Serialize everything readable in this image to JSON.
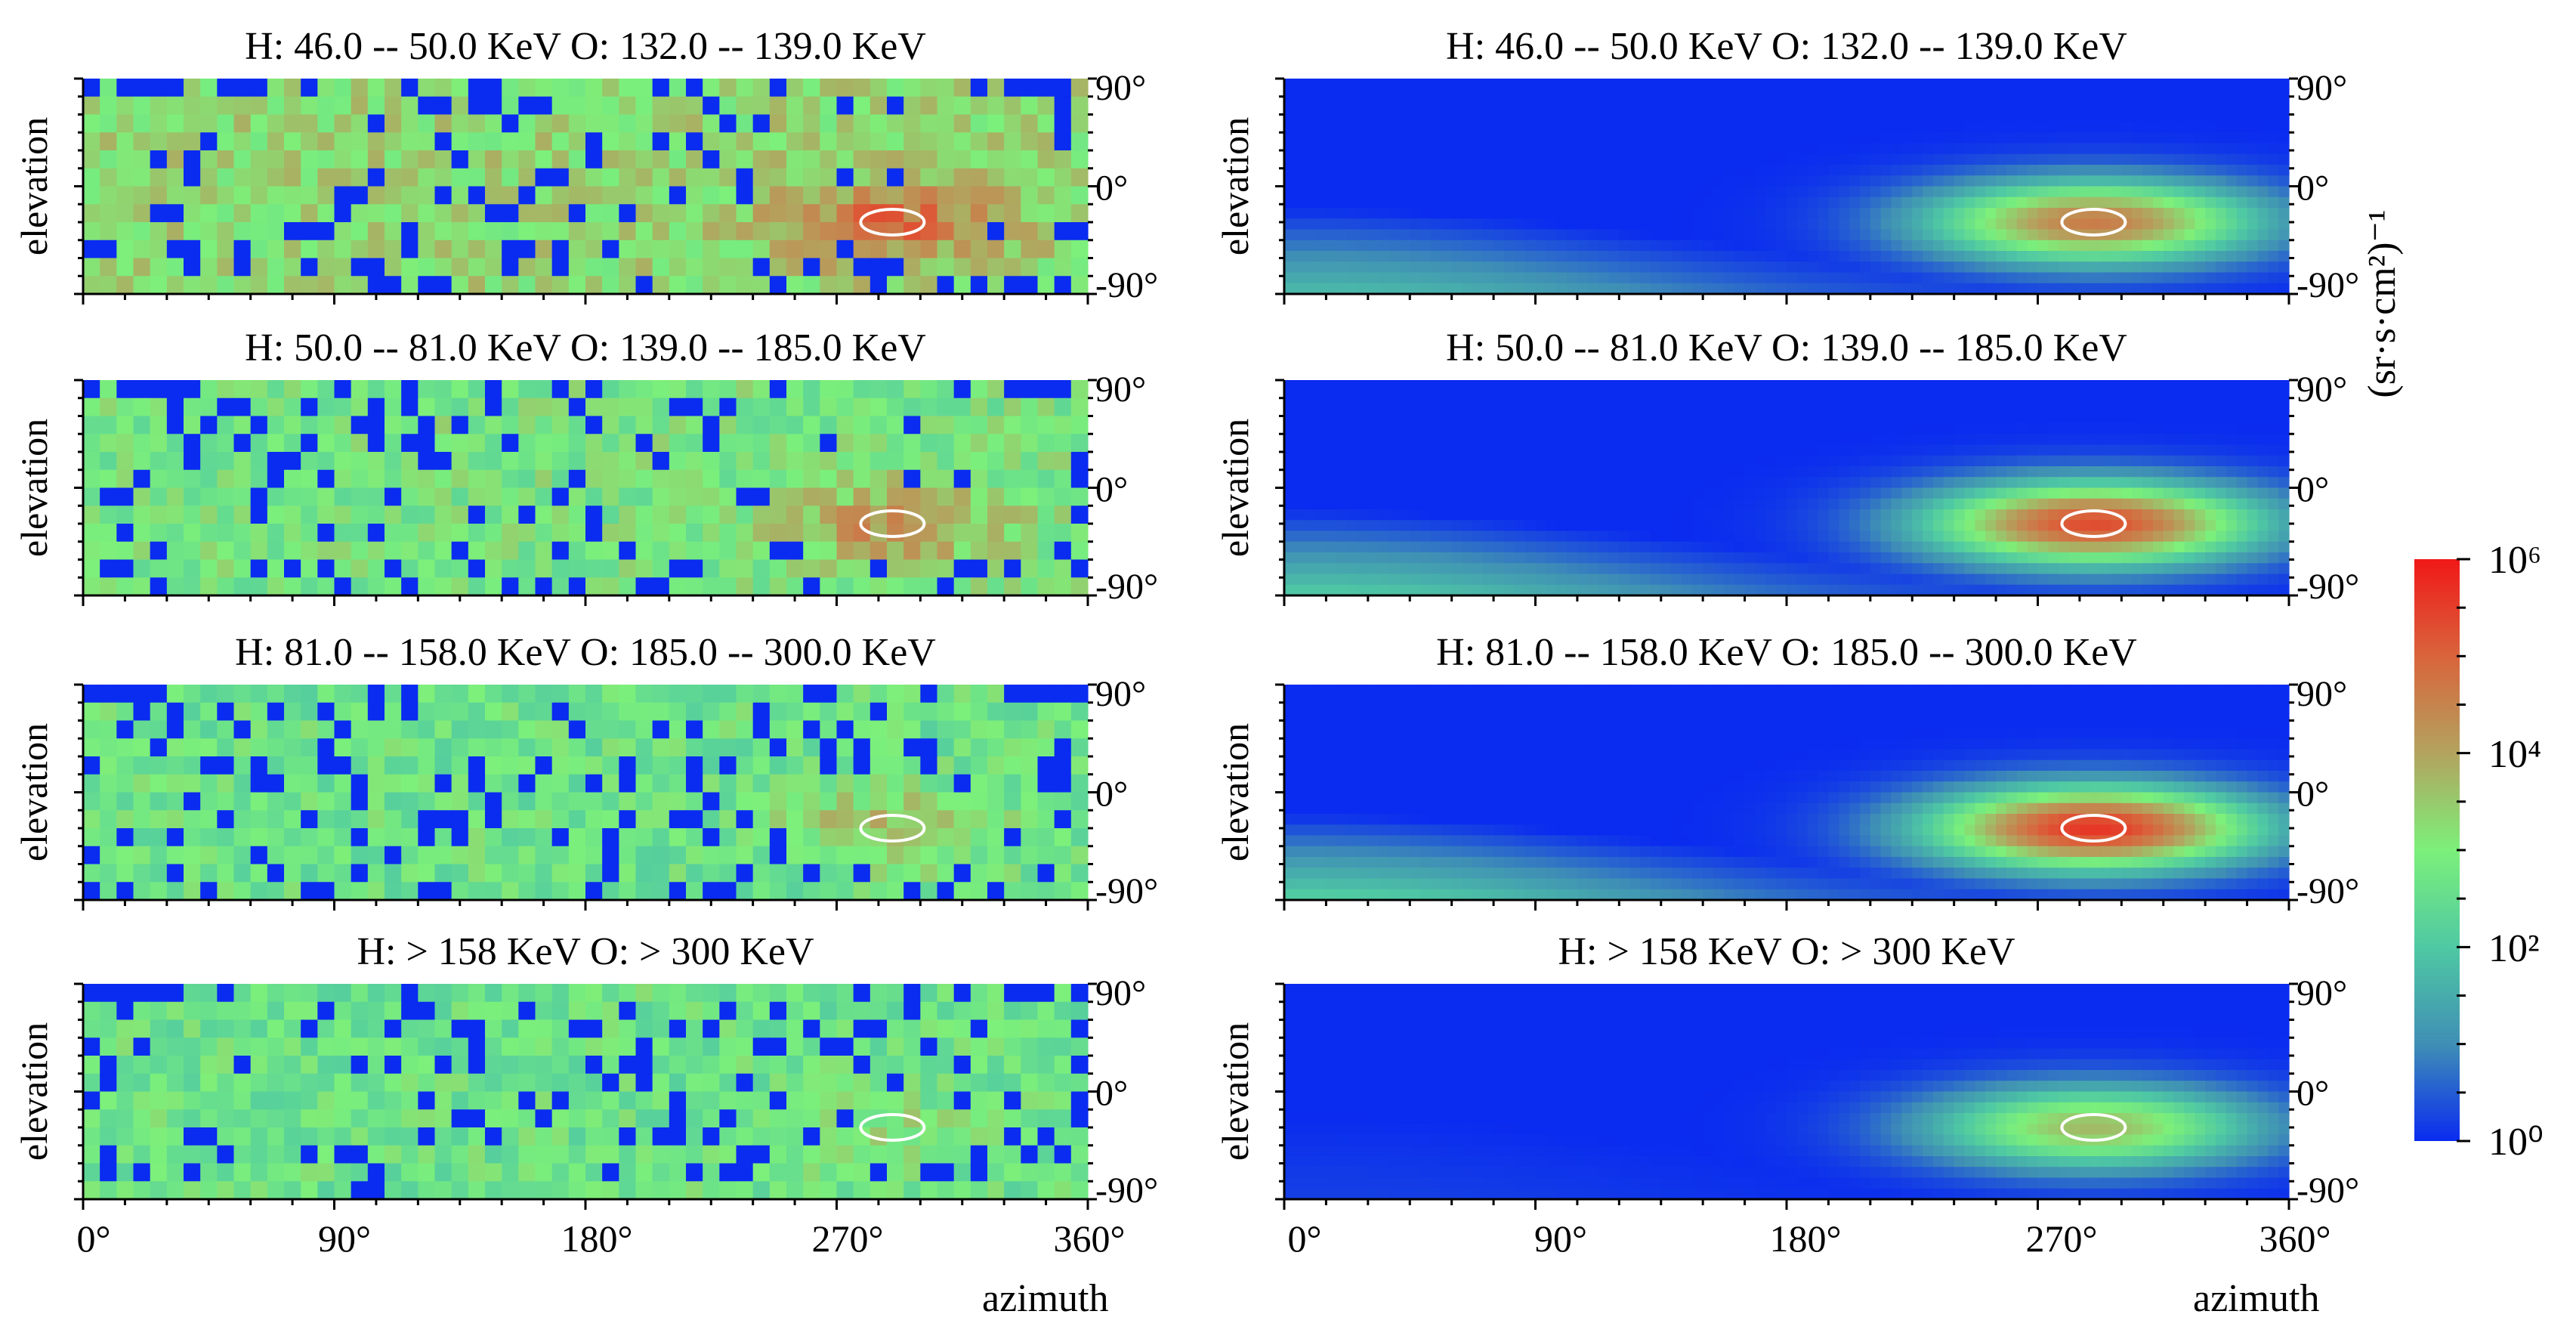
{
  "figure": {
    "xlabel": "azimuth",
    "ylabel": "elevation",
    "x_ticks": [
      "0°",
      "90°",
      "180°",
      "270°",
      "360°"
    ],
    "y_ticks": [
      "90°",
      "0°",
      "-90°"
    ],
    "colorbar": {
      "label": "(sr·s·cm²)⁻¹",
      "ticks": [
        "10⁶",
        "10⁴",
        "10²",
        "10⁰"
      ],
      "min_exp": 0,
      "max_exp": 6,
      "colors": [
        "#0a2bf0",
        "#3f8fb5",
        "#4fc9a3",
        "#7cf07a",
        "#b3a35e",
        "#d9643c",
        "#f01818"
      ]
    }
  },
  "chart_data": [
    {
      "type": "heatmap",
      "title": "H: 46.0  --  50.0 KeV    O: 132.0  --  139.0 KeV",
      "column": "left",
      "row": 0,
      "x_range": [
        0,
        360
      ],
      "y_range": [
        -90,
        90
      ],
      "level": 3.3,
      "hotspot": {
        "az": 290,
        "el": -30,
        "peak_exp": 4.9
      },
      "noise_seed": 11,
      "noisy": true
    },
    {
      "type": "heatmap",
      "title": "H: 50.0  --  81.0 KeV    O: 139.0  --  185.0 KeV",
      "column": "left",
      "row": 1,
      "x_range": [
        0,
        360
      ],
      "y_range": [
        -90,
        90
      ],
      "level": 2.9,
      "hotspot": {
        "az": 290,
        "el": -30,
        "peak_exp": 4.4
      },
      "noise_seed": 23,
      "noisy": true
    },
    {
      "type": "heatmap",
      "title": "H: 81.0  --  158.0 KeV    O: 185.0  --  300.0 KeV",
      "column": "left",
      "row": 2,
      "x_range": [
        0,
        360
      ],
      "y_range": [
        -90,
        90
      ],
      "level": 2.7,
      "hotspot": {
        "az": 290,
        "el": -30,
        "peak_exp": 3.7
      },
      "noise_seed": 37,
      "noisy": true
    },
    {
      "type": "heatmap",
      "title": "H:  > 158 KeV    O:  > 300 KeV",
      "column": "left",
      "row": 3,
      "x_range": [
        0,
        360
      ],
      "y_range": [
        -90,
        90
      ],
      "level": 2.7,
      "hotspot": {
        "az": 290,
        "el": -30,
        "peak_exp": 3.1
      },
      "noise_seed": 53,
      "noisy": true
    },
    {
      "type": "heatmap",
      "title": "H: 46.0  --  50.0 KeV    O: 132.0  --  139.0 KeV",
      "column": "right",
      "row": 0,
      "x_range": [
        0,
        360
      ],
      "y_range": [
        -90,
        90
      ],
      "level": 0,
      "hotspot": {
        "az": 290,
        "el": -30,
        "peak_exp": 4.6
      },
      "noisy": false
    },
    {
      "type": "heatmap",
      "title": "H: 50.0  --  81.0 KeV    O: 139.0  --  185.0 KeV",
      "column": "right",
      "row": 1,
      "x_range": [
        0,
        360
      ],
      "y_range": [
        -90,
        90
      ],
      "level": 0,
      "hotspot": {
        "az": 290,
        "el": -30,
        "peak_exp": 5.3
      },
      "noisy": false
    },
    {
      "type": "heatmap",
      "title": "H: 81.0  --  158.0 KeV    O: 185.0  --  300.0 KeV",
      "column": "right",
      "row": 2,
      "x_range": [
        0,
        360
      ],
      "y_range": [
        -90,
        90
      ],
      "level": 0,
      "hotspot": {
        "az": 290,
        "el": -30,
        "peak_exp": 5.6
      },
      "noisy": false
    },
    {
      "type": "heatmap",
      "title": "H:  > 158 KeV    O:  > 300 KeV",
      "column": "right",
      "row": 3,
      "x_range": [
        0,
        360
      ],
      "y_range": [
        -90,
        90
      ],
      "level": 0,
      "hotspot": {
        "az": 290,
        "el": -30,
        "peak_exp": 3.7
      },
      "noisy": false
    }
  ]
}
